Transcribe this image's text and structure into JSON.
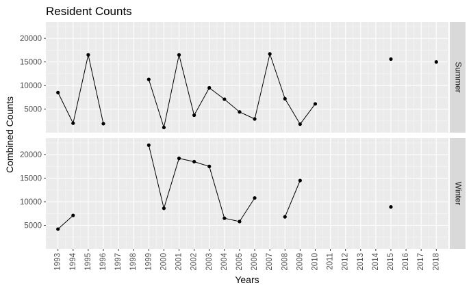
{
  "chart_data": {
    "type": "line",
    "title": "Resident Counts",
    "xlabel": "Years",
    "ylabel": "Combined Counts",
    "x_ticks": [
      "1993",
      "1994",
      "1995",
      "1996",
      "1997",
      "1998",
      "1999",
      "2000",
      "2001",
      "2002",
      "2003",
      "2004",
      "2005",
      "2006",
      "2007",
      "2008",
      "2009",
      "2010",
      "2011",
      "2012",
      "2013",
      "2014",
      "2015",
      "2016",
      "2017",
      "2018"
    ],
    "y_ticks": [
      5000,
      10000,
      15000,
      20000
    ],
    "y_tick_labels": [
      "5000",
      "10000",
      "15000",
      "20000"
    ],
    "ylim": [
      0,
      23500
    ],
    "xlim": [
      1992.2,
      2018.8
    ],
    "grid": true,
    "facet_strip_position": "right",
    "panels": [
      {
        "name": "Summer",
        "points": [
          {
            "x": 1993,
            "y": 8500
          },
          {
            "x": 1994,
            "y": 2000
          },
          {
            "x": 1995,
            "y": 16500
          },
          {
            "x": 1996,
            "y": 1900
          },
          {
            "x": 1999,
            "y": 11300
          },
          {
            "x": 2000,
            "y": 1100
          },
          {
            "x": 2001,
            "y": 16500
          },
          {
            "x": 2002,
            "y": 3700
          },
          {
            "x": 2003,
            "y": 9500
          },
          {
            "x": 2004,
            "y": 7100
          },
          {
            "x": 2005,
            "y": 4400
          },
          {
            "x": 2006,
            "y": 2900
          },
          {
            "x": 2007,
            "y": 16700
          },
          {
            "x": 2008,
            "y": 7200
          },
          {
            "x": 2009,
            "y": 1800
          },
          {
            "x": 2010,
            "y": 6100
          },
          {
            "x": 2015,
            "y": 15600
          },
          {
            "x": 2018,
            "y": 15000
          }
        ],
        "line_segments": [
          [
            1993,
            1994,
            1995,
            1996
          ],
          [
            1999,
            2000,
            2001,
            2002,
            2003,
            2004,
            2005,
            2006,
            2007,
            2008,
            2009,
            2010
          ]
        ]
      },
      {
        "name": "Winter",
        "points": [
          {
            "x": 1993,
            "y": 4200
          },
          {
            "x": 1994,
            "y": 7100
          },
          {
            "x": 1999,
            "y": 22000
          },
          {
            "x": 2000,
            "y": 8600
          },
          {
            "x": 2001,
            "y": 19200
          },
          {
            "x": 2002,
            "y": 18500
          },
          {
            "x": 2003,
            "y": 17500
          },
          {
            "x": 2004,
            "y": 6500
          },
          {
            "x": 2005,
            "y": 5800
          },
          {
            "x": 2006,
            "y": 10800
          },
          {
            "x": 2008,
            "y": 6800
          },
          {
            "x": 2009,
            "y": 14500
          },
          {
            "x": 2015,
            "y": 8900
          }
        ],
        "line_segments": [
          [
            1993,
            1994
          ],
          [
            1999,
            2000,
            2001,
            2002,
            2003,
            2004,
            2005,
            2006
          ],
          [
            2008,
            2009
          ]
        ]
      }
    ],
    "colors": {
      "panel_background": "#ebebeb",
      "grid_major": "#ffffff",
      "grid_minor": "#f5f5f5",
      "strip_background": "#d9d9d9",
      "line": "#000000",
      "point": "#000000"
    }
  }
}
